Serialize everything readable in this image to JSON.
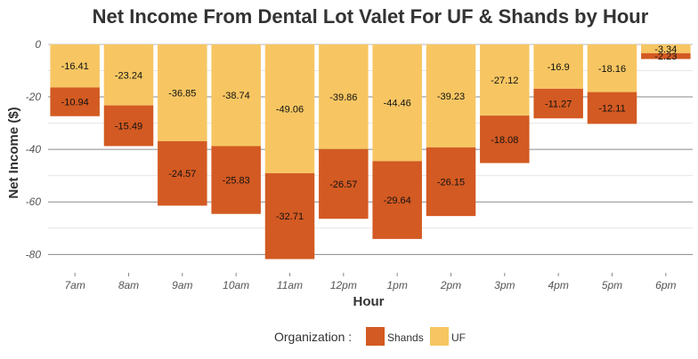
{
  "chart_data": {
    "type": "bar",
    "stacked": true,
    "title": "Net Income From Dental Lot Valet For UF & Shands by Hour",
    "xlabel": "Hour",
    "ylabel": "Net Income ($)",
    "ylim": [
      -87,
      1
    ],
    "yticks": [
      0,
      -20,
      -40,
      -60,
      -80
    ],
    "grid": true,
    "categories": [
      "7am",
      "8am",
      "9am",
      "10am",
      "11am",
      "12pm",
      "1pm",
      "2pm",
      "3pm",
      "4pm",
      "5pm",
      "6pm"
    ],
    "series": [
      {
        "name": "UF",
        "color": "#F7C662",
        "values": [
          -16.41,
          -23.24,
          -36.85,
          -38.74,
          -49.06,
          -39.86,
          -44.46,
          -39.23,
          -27.12,
          -16.9,
          -18.16,
          -3.34
        ]
      },
      {
        "name": "Shands",
        "color": "#D35A22",
        "values": [
          -10.94,
          -15.49,
          -24.57,
          -25.83,
          -32.71,
          -26.57,
          -29.64,
          -26.15,
          -18.08,
          -11.27,
          -12.11,
          -2.23
        ]
      }
    ],
    "legend": {
      "title": "Organization :",
      "position": "bottom",
      "items": [
        {
          "label": "Shands",
          "color": "#D35A22"
        },
        {
          "label": "UF",
          "color": "#F7C662"
        }
      ]
    }
  }
}
